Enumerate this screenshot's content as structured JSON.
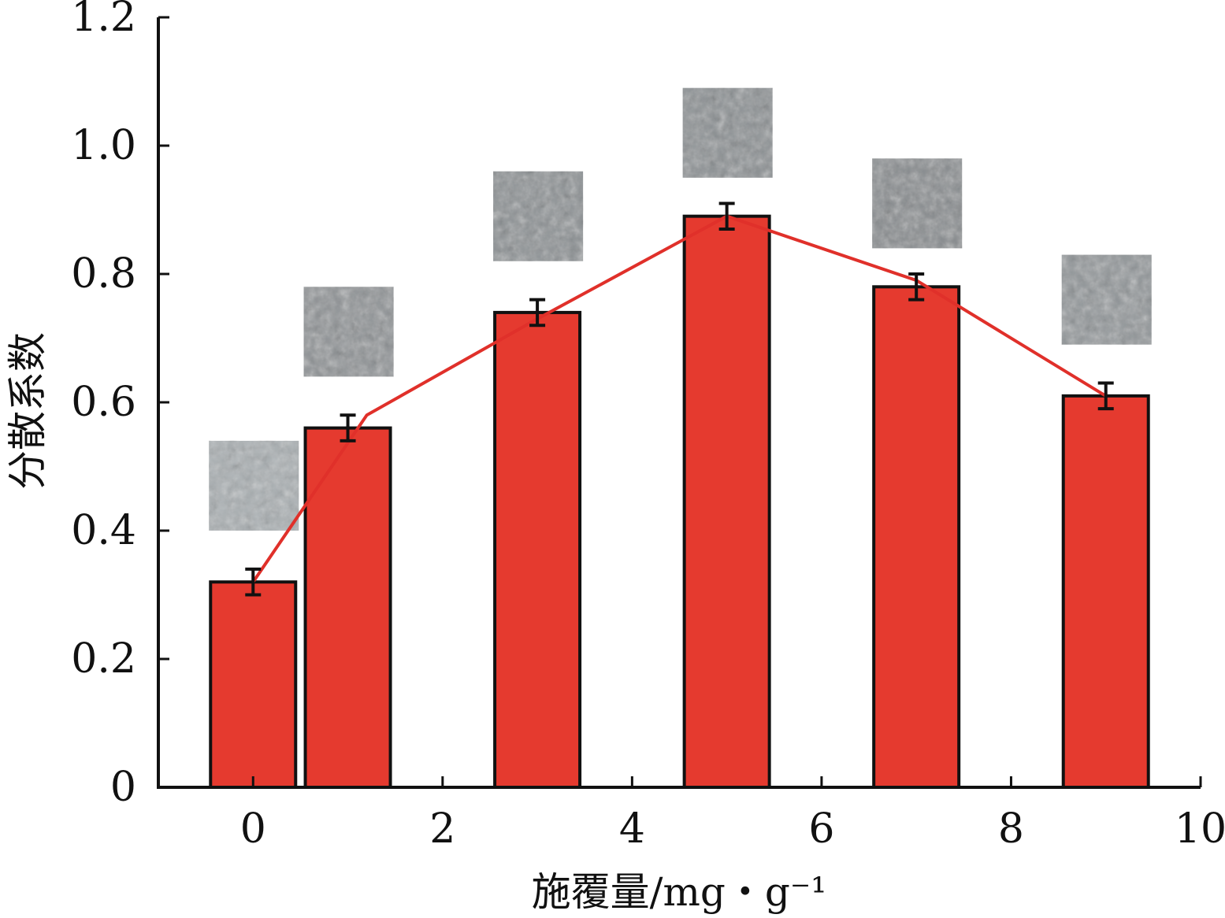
{
  "chart_data": {
    "type": "bar",
    "xlabel": "施覆量/mg・g⁻¹",
    "ylabel": "分散系数",
    "xlim": [
      -1,
      10
    ],
    "ylim": [
      0,
      1.2
    ],
    "xticks": [
      "0",
      "2",
      "4",
      "6",
      "8",
      "10"
    ],
    "yticks": [
      "0",
      "0.2",
      "0.4",
      "0.6",
      "0.8",
      "1.0",
      "1.2"
    ],
    "x": [
      0,
      1,
      3,
      5,
      7,
      9
    ],
    "values": [
      0.32,
      0.56,
      0.74,
      0.89,
      0.78,
      0.61
    ],
    "errors": [
      0.02,
      0.02,
      0.02,
      0.02,
      0.02,
      0.02
    ],
    "line_x": [
      0,
      1.2,
      3,
      5,
      7,
      9
    ],
    "line_y": [
      0.32,
      0.58,
      0.73,
      0.89,
      0.79,
      0.61
    ],
    "bar_color": "#e53a2f",
    "line_color": "#e0302a",
    "grid": false,
    "legend": "none",
    "inset_photos": [
      {
        "x": 0,
        "y": 0.47,
        "tone": "#aab0b3"
      },
      {
        "x": 1,
        "y": 0.71,
        "tone": "#8f9396"
      },
      {
        "x": 3,
        "y": 0.89,
        "tone": "#8c9194"
      },
      {
        "x": 5,
        "y": 1.02,
        "tone": "#8b9093"
      },
      {
        "x": 7,
        "y": 0.91,
        "tone": "#888c8f"
      },
      {
        "x": 9,
        "y": 0.76,
        "tone": "#92979a"
      }
    ]
  }
}
